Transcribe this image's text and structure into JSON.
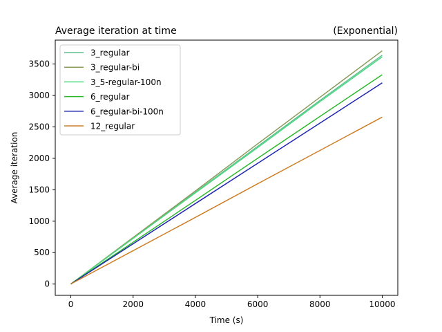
{
  "chart_data": {
    "type": "line",
    "title": "Average iteration at time",
    "subtitle": "(Exponential)",
    "xlabel": "Time (s)",
    "ylabel": "Average iteration",
    "xlim": [
      -500,
      10500
    ],
    "ylim": [
      -180,
      3880
    ],
    "xticks": [
      0,
      2000,
      4000,
      6000,
      8000,
      10000
    ],
    "yticks": [
      0,
      500,
      1000,
      1500,
      2000,
      2500,
      3000,
      3500
    ],
    "grid": false,
    "legend_position": "top-left",
    "series": [
      {
        "name": "3_regular",
        "color": "#5fbf8f",
        "x": [
          0,
          2000,
          4000,
          6000,
          8000,
          10000
        ],
        "y": [
          0,
          730,
          1460,
          2190,
          2920,
          3640
        ]
      },
      {
        "name": "3_regular-bi",
        "color": "#8a9a5b",
        "x": [
          0,
          2000,
          4000,
          6000,
          8000,
          10000
        ],
        "y": [
          0,
          740,
          1480,
          2230,
          2970,
          3710
        ]
      },
      {
        "name": "3_5-regular-100n",
        "color": "#4cdb84",
        "x": [
          0,
          2000,
          4000,
          6000,
          8000,
          10000
        ],
        "y": [
          0,
          725,
          1450,
          2170,
          2900,
          3615
        ]
      },
      {
        "name": "6_regular",
        "color": "#2eb82e",
        "x": [
          0,
          2000,
          4000,
          6000,
          8000,
          10000
        ],
        "y": [
          0,
          665,
          1330,
          2000,
          2665,
          3330
        ]
      },
      {
        "name": "6_regular-bi-100n",
        "color": "#1f25b0",
        "x": [
          0,
          2000,
          4000,
          6000,
          8000,
          10000
        ],
        "y": [
          0,
          640,
          1280,
          1920,
          2560,
          3200
        ]
      },
      {
        "name": "12_regular",
        "color": "#cd7f27",
        "x": [
          0,
          2000,
          4000,
          6000,
          8000,
          10000
        ],
        "y": [
          0,
          530,
          1060,
          1595,
          2125,
          2655
        ]
      }
    ]
  }
}
